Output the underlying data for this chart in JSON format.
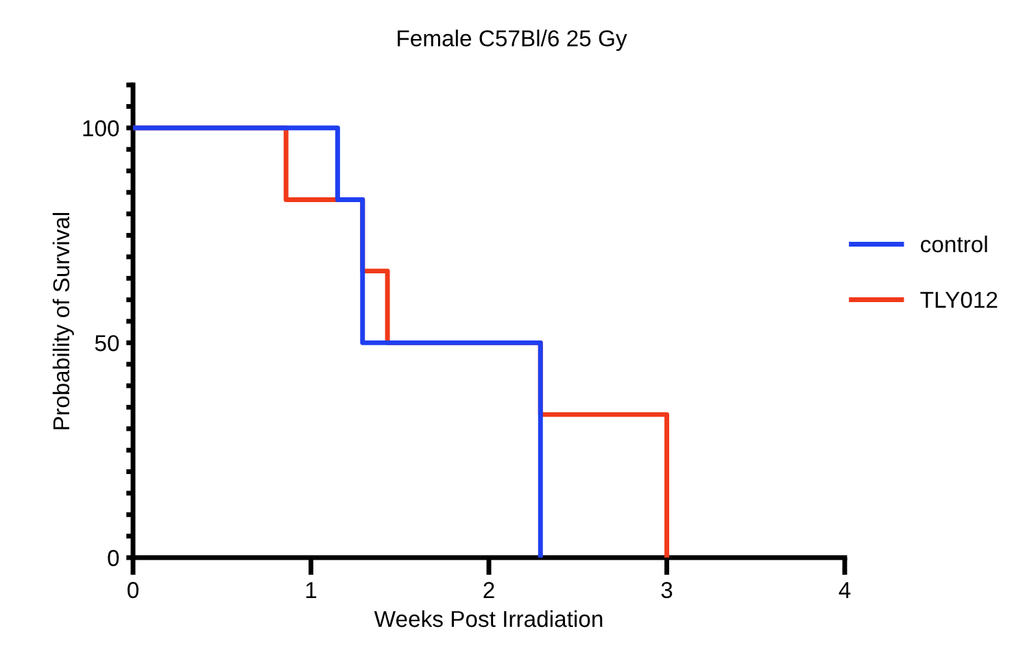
{
  "chart_data": {
    "type": "step",
    "title": "Female C57Bl/6 25 Gy",
    "xlabel": "Weeks Post Irradiation",
    "ylabel": "Probability of Survival",
    "series": [
      {
        "name": "control",
        "color": "#1f3ff0",
        "x": [
          0,
          1.15,
          1.29,
          2.29
        ],
        "values": [
          100,
          83.3,
          50,
          0
        ]
      },
      {
        "name": "TLY012",
        "color": "#f03a1a",
        "x": [
          0,
          0.86,
          1.29,
          1.43,
          2.29,
          3.0
        ],
        "values": [
          100,
          83.3,
          66.7,
          50,
          33.3,
          0
        ]
      }
    ],
    "xlim": [
      0,
      4
    ],
    "xticks": [
      0,
      1,
      2,
      3,
      4
    ],
    "ylim": [
      0,
      110
    ],
    "yticks": [
      0,
      {
        "value": 5,
        "label": null
      },
      {
        "value": 10,
        "label": null
      },
      {
        "value": 15,
        "label": null
      },
      {
        "value": 20,
        "label": null
      },
      {
        "value": 25,
        "label": null
      },
      {
        "value": 30,
        "label": null
      },
      {
        "value": 35,
        "label": null
      },
      {
        "value": 40,
        "label": null
      },
      {
        "value": 45,
        "label": null
      },
      50,
      {
        "value": 55,
        "label": null
      },
      {
        "value": 60,
        "label": null
      },
      {
        "value": 65,
        "label": null
      },
      {
        "value": 70,
        "label": null
      },
      {
        "value": 75,
        "label": null
      },
      {
        "value": 80,
        "label": null
      },
      {
        "value": 85,
        "label": null
      },
      {
        "value": 90,
        "label": null
      },
      {
        "value": 95,
        "label": null
      },
      100,
      {
        "value": 105,
        "label": null
      },
      {
        "value": 110,
        "label": null
      }
    ],
    "grid": false,
    "legend": "right",
    "line_style": "solid",
    "marker": "none"
  }
}
